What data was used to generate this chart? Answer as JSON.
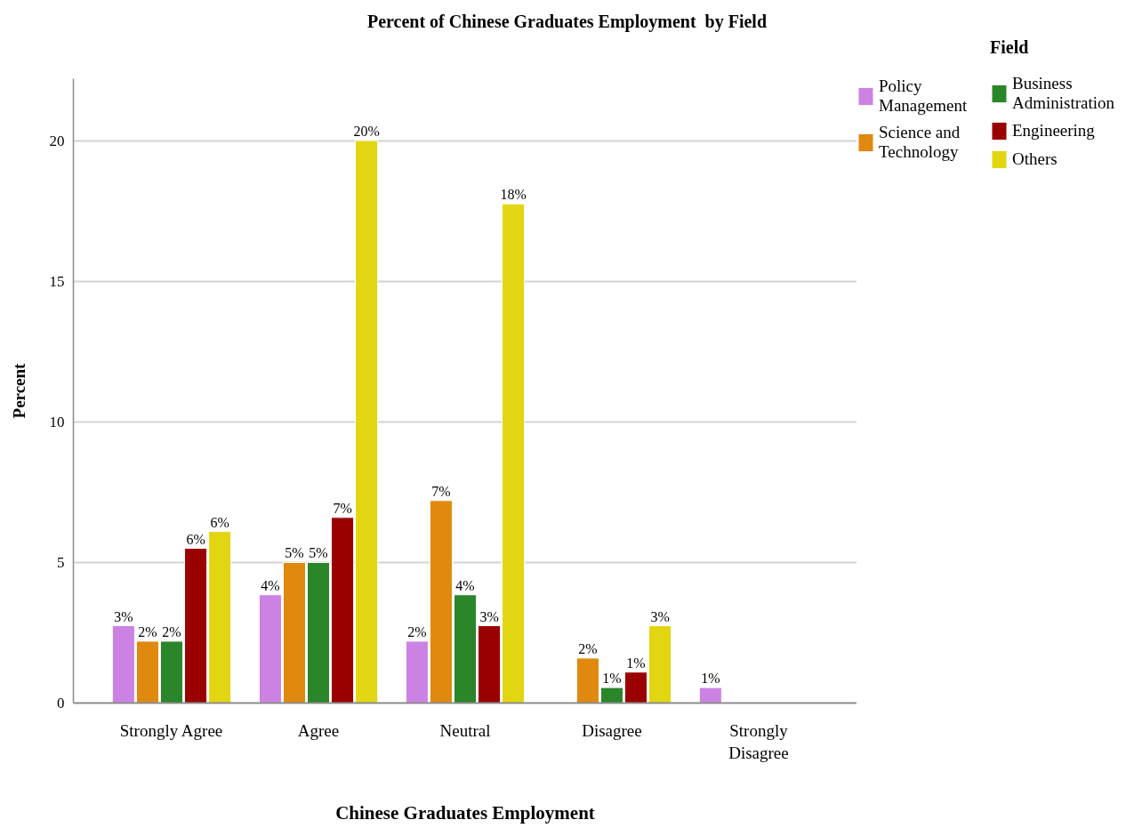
{
  "chart_data": {
    "type": "bar",
    "title": "Percent of Chinese Graduates Employment  by Field",
    "xlabel": "Chinese Graduates Employment",
    "ylabel": "Percent",
    "legend_title": "Field",
    "categories": [
      "Strongly Agree",
      "Agree",
      "Neutral",
      "Disagree",
      "Strongly Disagree"
    ],
    "series": [
      {
        "name": "Policy Management",
        "color": "#cc82e3",
        "values": [
          2.75,
          3.85,
          2.2,
          null,
          0.55
        ],
        "value_labels": [
          "3%",
          "4%",
          "2%",
          null,
          "1%"
        ]
      },
      {
        "name": "Science and Technology",
        "color": "#e0890f",
        "values": [
          2.2,
          5.0,
          7.2,
          1.6,
          null
        ],
        "value_labels": [
          "2%",
          "5%",
          "7%",
          "2%",
          null
        ]
      },
      {
        "name": "Business Administration",
        "color": "#2b862a",
        "values": [
          2.2,
          5.0,
          3.85,
          0.55,
          null
        ],
        "value_labels": [
          "2%",
          "5%",
          "4%",
          "1%",
          null
        ]
      },
      {
        "name": "Engineering",
        "color": "#9a0000",
        "values": [
          5.5,
          6.6,
          2.75,
          1.1,
          null
        ],
        "value_labels": [
          "6%",
          "7%",
          "3%",
          "1%",
          null
        ]
      },
      {
        "name": "Others",
        "color": "#e2d511",
        "values": [
          6.1,
          20.0,
          17.75,
          2.75,
          null
        ],
        "value_labels": [
          "6%",
          "20%",
          "18%",
          "3%",
          null
        ]
      }
    ],
    "ylim": [
      0,
      22.2
    ],
    "yticks": [
      0,
      5,
      10,
      15,
      20
    ],
    "grid": "y",
    "legend": "top right"
  }
}
